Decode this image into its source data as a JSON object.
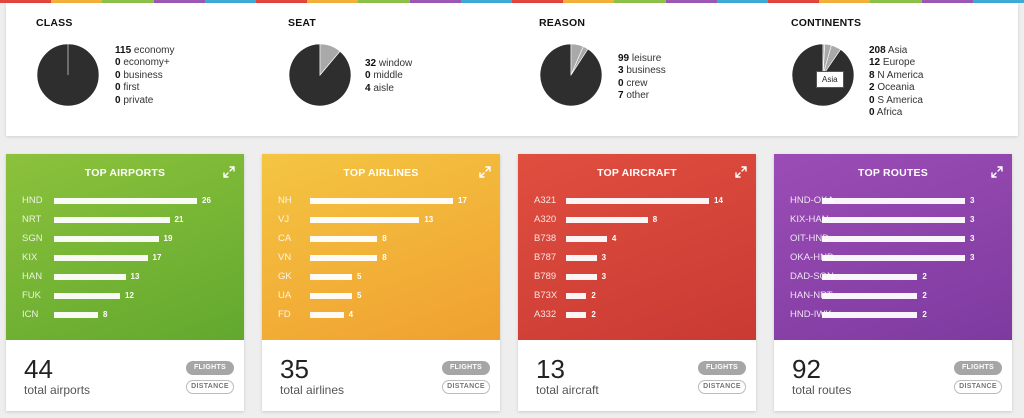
{
  "top_strip_colors": [
    "#e2453c",
    "#f3b13a",
    "#8bc34a",
    "#9c59b6",
    "#3fa9d8",
    "#e2453c",
    "#f3b13a",
    "#8bc34a",
    "#9c59b6",
    "#3fa9d8",
    "#e2453c",
    "#f3b13a",
    "#8bc34a",
    "#9c59b6",
    "#3fa9d8",
    "#e2453c",
    "#f3b13a",
    "#8bc34a",
    "#9c59b6",
    "#3fa9d8"
  ],
  "summary": {
    "class": {
      "title": "CLASS",
      "items": [
        {
          "count": "115",
          "label": "economy",
          "value": 115
        },
        {
          "count": "0",
          "label": "economy+",
          "value": 0
        },
        {
          "count": "0",
          "label": "business",
          "value": 0
        },
        {
          "count": "0",
          "label": "first",
          "value": 0
        },
        {
          "count": "0",
          "label": "private",
          "value": 0
        }
      ]
    },
    "seat": {
      "title": "SEAT",
      "items": [
        {
          "count": "32",
          "label": "window",
          "value": 32
        },
        {
          "count": "0",
          "label": "middle",
          "value": 0
        },
        {
          "count": "4",
          "label": "aisle",
          "value": 4
        }
      ]
    },
    "reason": {
      "title": "REASON",
      "items": [
        {
          "count": "99",
          "label": "leisure",
          "value": 99
        },
        {
          "count": "3",
          "label": "business",
          "value": 3
        },
        {
          "count": "0",
          "label": "crew",
          "value": 0
        },
        {
          "count": "7",
          "label": "other",
          "value": 7
        }
      ]
    },
    "continents": {
      "title": "CONTINENTS",
      "tooltip": "Asia",
      "items": [
        {
          "count": "208",
          "label": "Asia",
          "value": 208
        },
        {
          "count": "12",
          "label": "Europe",
          "value": 12
        },
        {
          "count": "8",
          "label": "N America",
          "value": 8
        },
        {
          "count": "2",
          "label": "Oceania",
          "value": 2
        },
        {
          "count": "0",
          "label": "S America",
          "value": 0
        },
        {
          "count": "0",
          "label": "Africa",
          "value": 0
        }
      ]
    }
  },
  "cards": {
    "airports": {
      "title": "TOP AIRPORTS",
      "color_top": "#8cc23c",
      "color_bottom": "#62a82e",
      "max": 26,
      "rows": [
        {
          "label": "HND",
          "value": 26
        },
        {
          "label": "NRT",
          "value": 21
        },
        {
          "label": "SGN",
          "value": 19
        },
        {
          "label": "KIX",
          "value": 17
        },
        {
          "label": "HAN",
          "value": 13
        },
        {
          "label": "FUK",
          "value": 12
        },
        {
          "label": "ICN",
          "value": 8
        }
      ],
      "total": "44",
      "total_label": "total airports",
      "flights_label": "FLIGHTS",
      "distance_label": "DISTANCE"
    },
    "airlines": {
      "title": "TOP AIRLINES",
      "color_top": "#f4c542",
      "color_bottom": "#f0a030",
      "max": 17,
      "rows": [
        {
          "label": "NH",
          "value": 17
        },
        {
          "label": "VJ",
          "value": 13
        },
        {
          "label": "CA",
          "value": 8
        },
        {
          "label": "VN",
          "value": 8
        },
        {
          "label": "GK",
          "value": 5
        },
        {
          "label": "UA",
          "value": 5
        },
        {
          "label": "FD",
          "value": 4
        }
      ],
      "total": "35",
      "total_label": "total airlines",
      "flights_label": "FLIGHTS",
      "distance_label": "DISTANCE"
    },
    "aircraft": {
      "title": "TOP AIRCRAFT",
      "color_top": "#e04e3f",
      "color_bottom": "#c93a33",
      "max": 14,
      "rows": [
        {
          "label": "A321",
          "value": 14
        },
        {
          "label": "A320",
          "value": 8
        },
        {
          "label": "B738",
          "value": 4
        },
        {
          "label": "B787",
          "value": 3
        },
        {
          "label": "B789",
          "value": 3
        },
        {
          "label": "B73X",
          "value": 2
        },
        {
          "label": "A332",
          "value": 2
        }
      ],
      "total": "13",
      "total_label": "total aircraft",
      "flights_label": "FLIGHTS",
      "distance_label": "DISTANCE"
    },
    "routes": {
      "title": "TOP ROUTES",
      "color_top": "#9b4db5",
      "color_bottom": "#7e3aa0",
      "max": 3,
      "rows": [
        {
          "label": "HND-OKA",
          "value": 3
        },
        {
          "label": "KIX-HAN",
          "value": 3
        },
        {
          "label": "OIT-HND",
          "value": 3
        },
        {
          "label": "OKA-HND",
          "value": 3
        },
        {
          "label": "DAD-SGN",
          "value": 2
        },
        {
          "label": "HAN-NRT",
          "value": 2
        },
        {
          "label": "HND-IWK",
          "value": 2
        }
      ],
      "total": "92",
      "total_label": "total routes",
      "flights_label": "FLIGHTS",
      "distance_label": "DISTANCE"
    }
  },
  "colors": {
    "pie_main": "#2e2e2e",
    "pie_secondary": "#a9a9a9",
    "pie_stroke": "#ffffff"
  }
}
